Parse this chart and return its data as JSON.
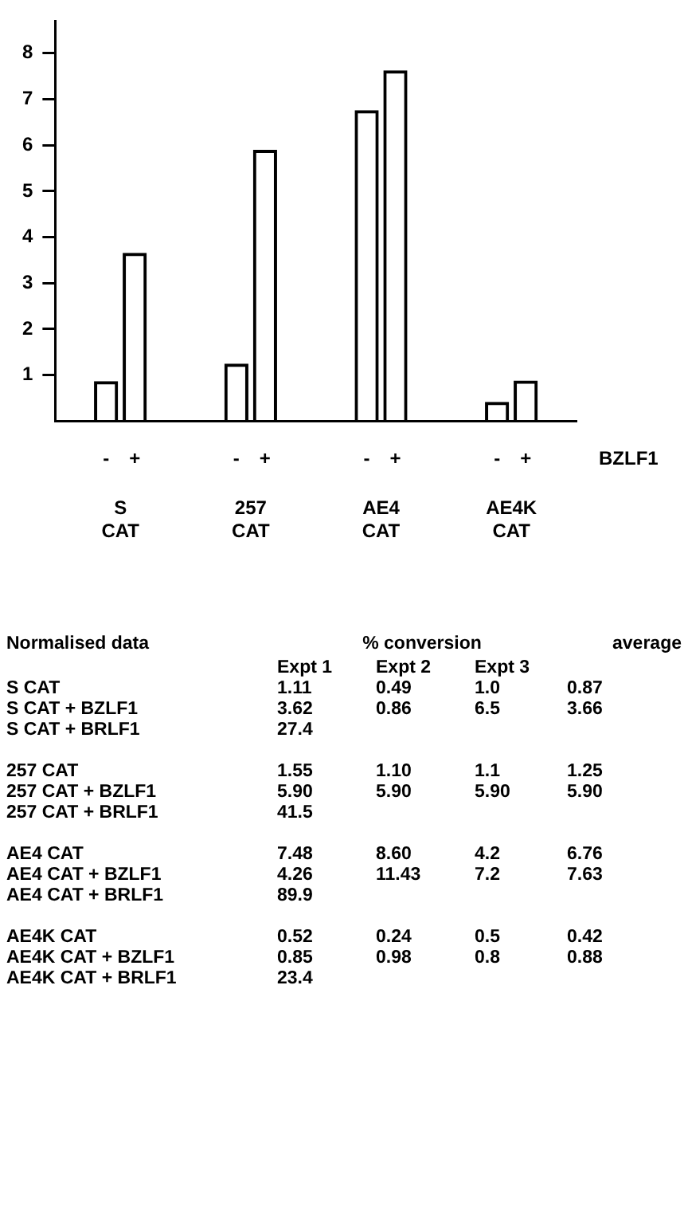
{
  "chart_data": {
    "type": "bar",
    "xlabel": "BZLF1",
    "categories": [
      "S CAT",
      "257 CAT",
      "AE4 CAT",
      "AE4K CAT"
    ],
    "series": [
      {
        "name": "-",
        "color": "#000000",
        "values": [
          0.87,
          1.25,
          6.76,
          0.42
        ]
      },
      {
        "name": "+",
        "color": "#000000",
        "values": [
          3.66,
          5.9,
          7.63,
          0.88
        ]
      }
    ],
    "ylim": [
      0,
      8.7
    ],
    "yticks": [
      1,
      2,
      3,
      4,
      5,
      6,
      7,
      8
    ],
    "grid": false,
    "legend": false,
    "annotations": [
      "Normalised data\t% conversion\taverage",
      "\tExpt 1\tExpt 2\tExpt 3",
      "S CAT\t1.11\t0.49\t1.0\t0.87",
      "S CAT + BZLF1\t3.62\t0.86\t6.5\t3.66",
      "S CAT + BRLF1\t27.4",
      "257 CAT\t1.55\t1.10\t1.1\t1.25",
      "257 CAT + BZLF1\t5.90\t5.90\t5.90\t5.90",
      "257 CAT + BRLF1\t41.5",
      "AE4 CAT\t7.48\t8.60\t4.2\t6.76",
      "AE4 CAT + BZLF1\t4.26\t11.43\t7.2\t7.63",
      "AE4 CAT + BRLF1\t89.9",
      "AE4K CAT\t0.52\t0.24\t0.5\t0.42",
      "AE4K CAT + BZLF1\t0.85\t0.98\t0.8\t0.88",
      "AE4K CAT + BRLF1\t23.4"
    ]
  }
}
